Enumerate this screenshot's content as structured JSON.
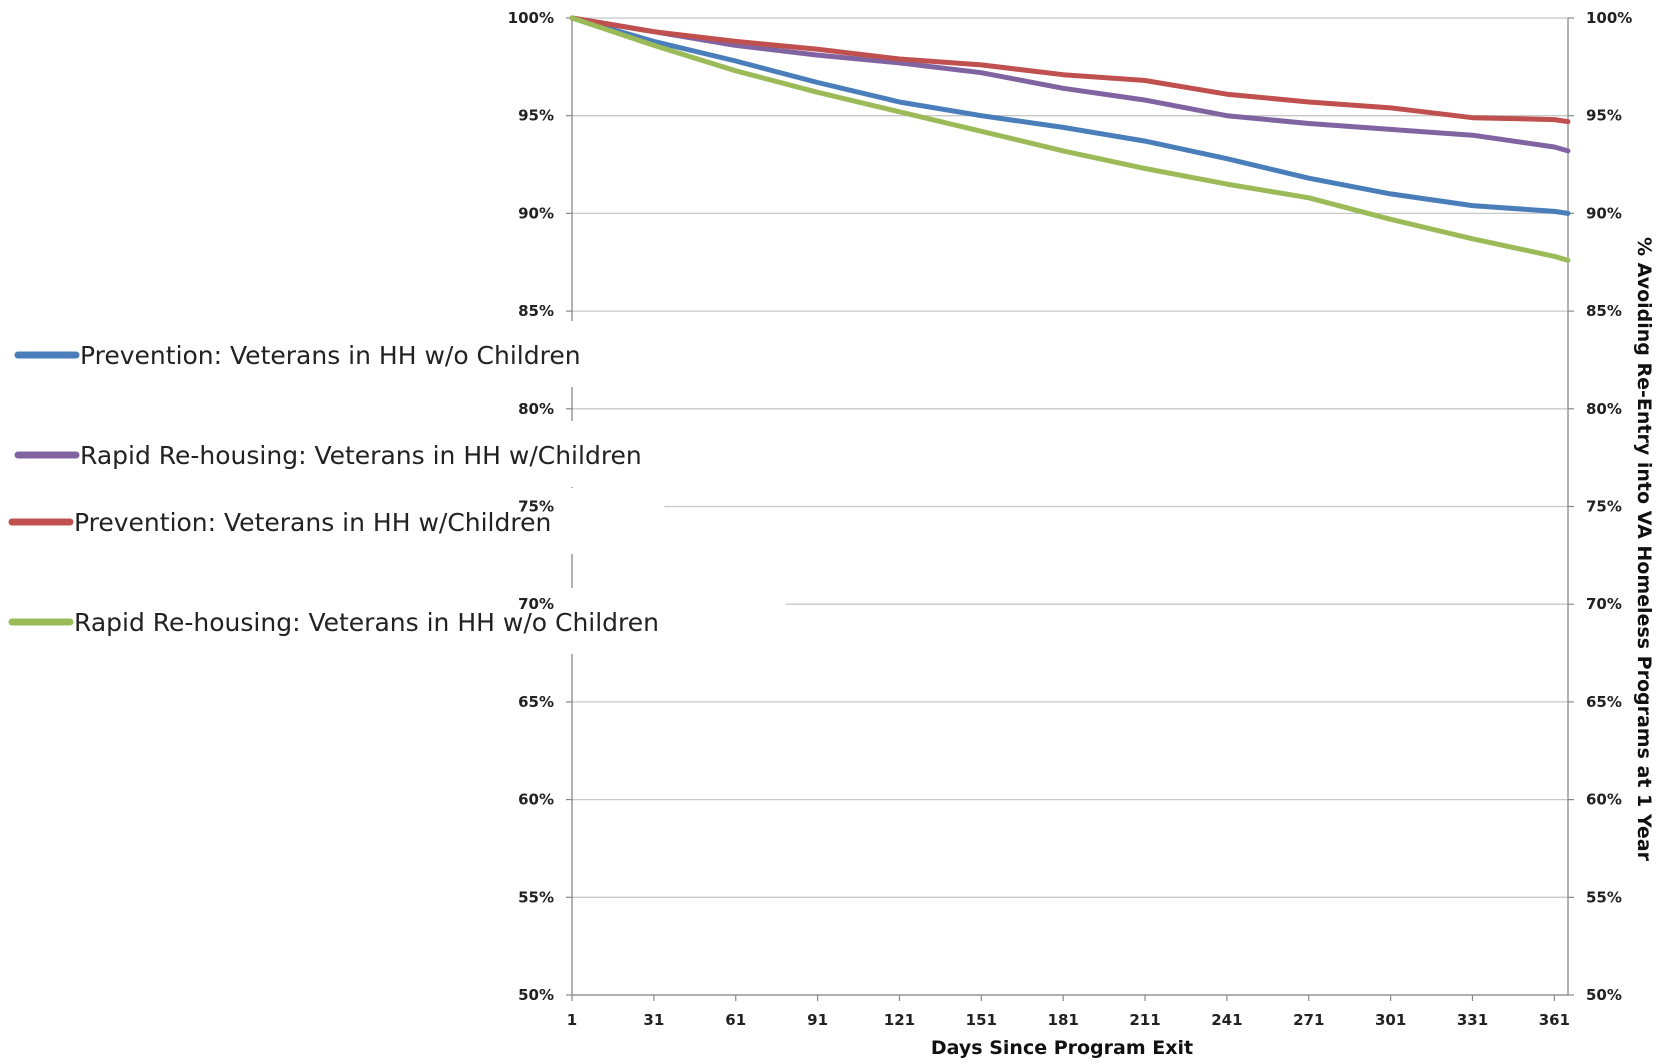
{
  "chart_data": {
    "type": "line",
    "title": "",
    "xlabel": "Days Since Program Exit",
    "ylabel": "% Avoiding Re-Entry into VA Homeless Programs at 1 Year",
    "xlim": [
      1,
      366
    ],
    "ylim": [
      50,
      100
    ],
    "x_ticks": [
      "1",
      "31",
      "61",
      "91",
      "121",
      "151",
      "181",
      "211",
      "241",
      "271",
      "301",
      "331",
      "361"
    ],
    "y_ticks": [
      "50%",
      "55%",
      "60%",
      "65%",
      "70%",
      "75%",
      "80%",
      "85%",
      "90%",
      "95%",
      "100%"
    ],
    "y_ticks_right": [
      "50%",
      "55%",
      "60%",
      "65%",
      "70%",
      "75%",
      "80%",
      "85%",
      "90%",
      "95%",
      "100%"
    ],
    "grid": true,
    "legend_position": "left",
    "series": [
      {
        "name": "Prevention: Veterans in HH w/o Children",
        "color": "#4a7ebb",
        "x": [
          1,
          31,
          61,
          91,
          121,
          151,
          181,
          211,
          241,
          271,
          301,
          331,
          361,
          366
        ],
        "y": [
          100,
          98.8,
          97.8,
          96.7,
          95.7,
          95.0,
          94.4,
          93.7,
          92.8,
          91.8,
          91.0,
          90.4,
          90.1,
          90.0
        ]
      },
      {
        "name": "Rapid Re-housing: Veterans in HH w/Children",
        "color": "#8064a2",
        "x": [
          1,
          31,
          61,
          91,
          121,
          151,
          181,
          211,
          241,
          271,
          301,
          331,
          361,
          366
        ],
        "y": [
          100,
          99.3,
          98.6,
          98.1,
          97.7,
          97.2,
          96.4,
          95.8,
          95.0,
          94.6,
          94.3,
          94.0,
          93.4,
          93.2
        ]
      },
      {
        "name": "Prevention: Veterans in HH w/Children",
        "color": "#c0504d",
        "x": [
          1,
          31,
          61,
          91,
          121,
          151,
          181,
          211,
          241,
          271,
          301,
          331,
          361,
          366
        ],
        "y": [
          100,
          99.3,
          98.8,
          98.4,
          97.9,
          97.6,
          97.1,
          96.8,
          96.1,
          95.7,
          95.4,
          94.9,
          94.8,
          94.7
        ]
      },
      {
        "name": "Rapid Re-housing: Veterans in HH w/o Children",
        "color": "#9bbb59",
        "x": [
          1,
          31,
          61,
          91,
          121,
          151,
          181,
          211,
          241,
          271,
          301,
          331,
          361,
          366
        ],
        "y": [
          100,
          98.6,
          97.3,
          96.2,
          95.2,
          94.2,
          93.2,
          92.3,
          91.5,
          90.8,
          89.7,
          88.7,
          87.8,
          87.6
        ]
      }
    ]
  }
}
